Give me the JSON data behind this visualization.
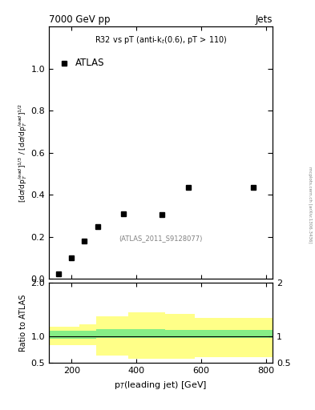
{
  "title_left": "7000 GeV pp",
  "title_right": "Jets",
  "inner_title": "R32 vs pT (anti-k_{t}(0.6), pT > 110)",
  "atlas_label": "ATLAS",
  "dataset_label": "(ATLAS_2011_S9128077)",
  "ylabel_main": "[dσ/dp$_T^{lead}$]$^{1/3}$ / [dσ/dp$_T^{lead}$]$^{1/2}$",
  "ylabel_ratio": "Ratio to ATLAS",
  "xlabel": "p$_T$(leading jet) [GeV]",
  "watermark": "mcplots.cern.ch [arXiv:1306.3436]",
  "data_x": [
    160,
    200,
    240,
    280,
    360,
    480,
    560,
    760
  ],
  "data_y": [
    0.025,
    0.1,
    0.18,
    0.25,
    0.31,
    0.305,
    0.435,
    0.435
  ],
  "ylim_main": [
    0,
    1.2
  ],
  "ylim_ratio": [
    0.5,
    2.0
  ],
  "xlim": [
    130,
    820
  ],
  "ratio_bins_x": [
    130,
    175,
    225,
    275,
    375,
    490,
    580,
    680,
    820
  ],
  "ratio_green_low": [
    0.95,
    0.96,
    0.96,
    0.97,
    0.97,
    0.97,
    0.97,
    0.97
  ],
  "ratio_green_high": [
    1.1,
    1.1,
    1.1,
    1.13,
    1.13,
    1.12,
    1.12,
    1.12
  ],
  "ratio_yellow_low": [
    0.83,
    0.83,
    0.83,
    0.63,
    0.57,
    0.58,
    0.6,
    0.6
  ],
  "ratio_yellow_high": [
    1.18,
    1.18,
    1.23,
    1.38,
    1.45,
    1.42,
    1.35,
    1.35
  ],
  "green_color": "#86ee86",
  "yellow_color": "#ffff88",
  "data_marker_color": "black",
  "background_color": "white"
}
